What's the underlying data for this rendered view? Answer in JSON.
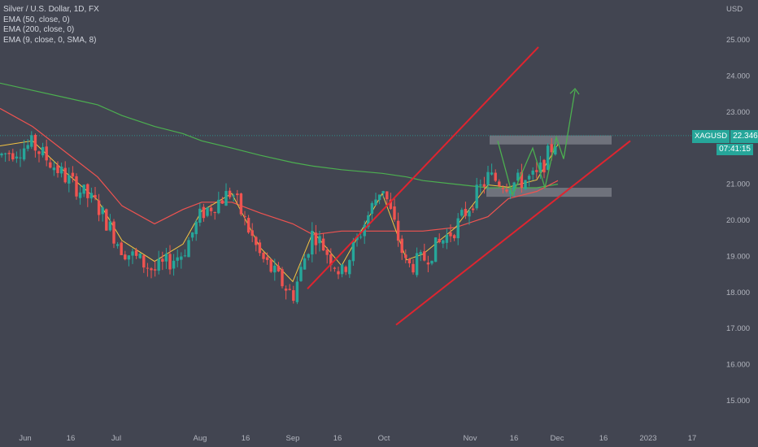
{
  "legend": {
    "title": "Silver / U.S. Dollar, 1D, FX",
    "ind1": "EMA (50, close, 0)",
    "ind2": "EMA (200, close, 0)",
    "ind3": "EMA (9, close, 0, SMA, 8)"
  },
  "price_axis": {
    "currency": "USD",
    "ticks": [
      "25.000",
      "24.000",
      "23.000",
      "22.000",
      "21.000",
      "20.000",
      "19.000",
      "18.000",
      "17.000",
      "16.000",
      "15.000"
    ]
  },
  "time_axis": {
    "ticks": [
      "Jun",
      "16",
      "Jul",
      "Aug",
      "16",
      "Sep",
      "16",
      "Oct",
      "Nov",
      "16",
      "Dec",
      "16",
      "2023",
      "17"
    ]
  },
  "price_tag": {
    "symbol": "XAGUSD",
    "price": "22.346",
    "countdown": "07:41:15",
    "color": "#26a69a"
  },
  "colors": {
    "up": "#26a69a",
    "down": "#ef5350",
    "ema50": "#ef5350",
    "ema200": "#4caf50",
    "ema9": "#f5c542",
    "channel": "#e0242f",
    "zone": "#9598a1",
    "projection": "#4caf50",
    "background": "#424551"
  },
  "chart_data": {
    "type": "candlestick",
    "title": "Silver / U.S. Dollar, 1D, FX",
    "ylim": [
      14.4,
      26.2
    ],
    "y_ticks": [
      15,
      16,
      17,
      18,
      19,
      20,
      21,
      22,
      23,
      24,
      25
    ],
    "candles_approx": [
      {
        "period": "late May",
        "o": 22.0,
        "h": 22.3,
        "l": 21.6,
        "c": 21.8
      },
      {
        "period": "Jun",
        "o": 21.9,
        "h": 22.3,
        "l": 21.5,
        "c": 22.1
      },
      {
        "period": "mid Jun",
        "o": 21.8,
        "h": 22.0,
        "l": 21.0,
        "c": 21.2
      },
      {
        "period": "late Jun",
        "o": 21.0,
        "h": 21.2,
        "l": 20.2,
        "c": 20.4
      },
      {
        "period": "Jul",
        "o": 20.0,
        "h": 20.2,
        "l": 19.0,
        "c": 19.2
      },
      {
        "period": "mid Jul",
        "o": 18.8,
        "h": 19.2,
        "l": 18.2,
        "c": 18.6
      },
      {
        "period": "late Jul",
        "o": 18.6,
        "h": 19.3,
        "l": 18.4,
        "c": 19.1
      },
      {
        "period": "Aug",
        "o": 19.8,
        "h": 20.4,
        "l": 19.6,
        "c": 20.2
      },
      {
        "period": "mid Aug",
        "o": 20.6,
        "h": 20.9,
        "l": 20.3,
        "c": 20.8
      },
      {
        "period": "late Aug",
        "o": 19.6,
        "h": 19.8,
        "l": 18.8,
        "c": 19.0
      },
      {
        "period": "Sep",
        "o": 18.6,
        "h": 18.8,
        "l": 17.6,
        "c": 17.9
      },
      {
        "period": "mid Sep",
        "o": 18.8,
        "h": 19.8,
        "l": 18.6,
        "c": 19.7
      },
      {
        "period": "late Sep",
        "o": 19.2,
        "h": 19.5,
        "l": 18.2,
        "c": 18.5
      },
      {
        "period": "Oct",
        "o": 19.5,
        "h": 21.2,
        "l": 19.4,
        "c": 21.0
      },
      {
        "period": "mid Oct",
        "o": 19.6,
        "h": 19.8,
        "l": 18.5,
        "c": 18.7
      },
      {
        "period": "late Oct",
        "o": 18.4,
        "h": 19.0,
        "l": 18.1,
        "c": 18.9
      },
      {
        "period": "Nov",
        "o": 19.2,
        "h": 20.0,
        "l": 19.0,
        "c": 19.8
      },
      {
        "period": "early Nov",
        "o": 19.8,
        "h": 21.4,
        "l": 19.6,
        "c": 21.2
      },
      {
        "period": "mid Nov",
        "o": 21.3,
        "h": 22.2,
        "l": 21.0,
        "c": 21.0
      },
      {
        "period": "late Nov",
        "o": 20.8,
        "h": 21.4,
        "l": 20.7,
        "c": 21.2
      },
      {
        "period": "Dec",
        "o": 21.3,
        "h": 22.4,
        "l": 21.2,
        "c": 22.35
      }
    ],
    "ema_values_approx": {
      "ema50": [
        23.1,
        22.6,
        21.9,
        21.2,
        20.4,
        19.9,
        20.3,
        20.5,
        20.5,
        20.2,
        19.9,
        19.6,
        19.7,
        19.7,
        19.7,
        19.7,
        19.8,
        20.1,
        20.6,
        20.8,
        21.1
      ],
      "ema200": [
        23.8,
        23.6,
        23.4,
        23.2,
        22.9,
        22.6,
        22.4,
        22.2,
        22.0,
        21.8,
        21.6,
        21.5,
        21.4,
        21.3,
        21.2,
        21.1,
        21.0,
        20.9,
        20.9,
        20.9,
        21.0
      ]
    },
    "annotations": {
      "channel_upper": {
        "from": [
          18.1,
          "mid Sep"
        ],
        "to": [
          24.8,
          "Nov"
        ]
      },
      "channel_lower": {
        "from": [
          17.1,
          "late Sep"
        ],
        "to": [
          22.2,
          "Dec"
        ]
      },
      "resistance_zone": [
        22.1,
        22.35
      ],
      "support_zone": [
        20.65,
        20.9
      ],
      "projection_target": 23.7
    }
  }
}
